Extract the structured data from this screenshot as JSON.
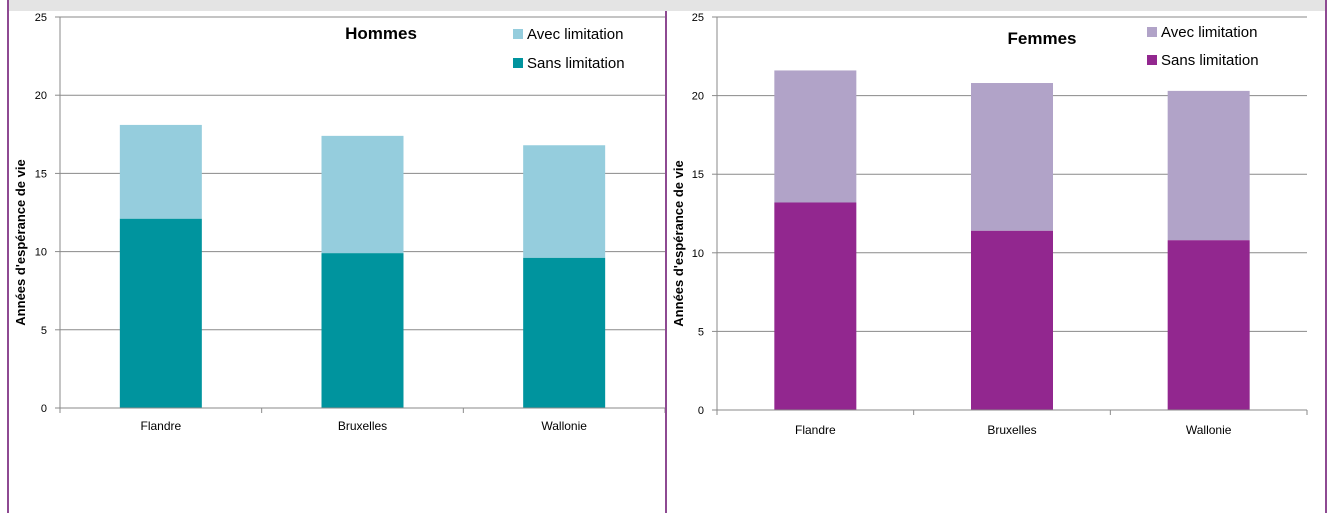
{
  "colors": {
    "hommes_avec": "#95cddd",
    "hommes_sans": "#00949e",
    "femmes_avec": "#b1a3c8",
    "femmes_sans": "#92278f",
    "frame": "#8e4a92",
    "grid": "#8a8a8a"
  },
  "chart_data": [
    {
      "type": "bar",
      "stacked": true,
      "title": "Hommes",
      "ylabel": "Années d'espérance de vie",
      "xlabel": "",
      "ylim": [
        0,
        25
      ],
      "yticks": [
        0,
        5,
        10,
        15,
        20,
        25
      ],
      "grid": true,
      "legend_position": "top-right",
      "categories": [
        "Flandre",
        "Bruxelles",
        "Wallonie"
      ],
      "series": [
        {
          "name": "Sans limitation",
          "values": [
            12.1,
            9.9,
            9.6
          ]
        },
        {
          "name": "Avec limitation",
          "values": [
            6.0,
            7.5,
            7.2
          ]
        }
      ]
    },
    {
      "type": "bar",
      "stacked": true,
      "title": "Femmes",
      "ylabel": "Années d'espérance de vie",
      "xlabel": "",
      "ylim": [
        0,
        25
      ],
      "yticks": [
        0,
        5,
        10,
        15,
        20,
        25
      ],
      "grid": true,
      "legend_position": "top-right",
      "categories": [
        "Flandre",
        "Bruxelles",
        "Wallonie"
      ],
      "series": [
        {
          "name": "Sans limitation",
          "values": [
            13.2,
            11.4,
            10.8
          ]
        },
        {
          "name": "Avec limitation",
          "values": [
            8.4,
            9.4,
            9.5
          ]
        }
      ]
    }
  ]
}
